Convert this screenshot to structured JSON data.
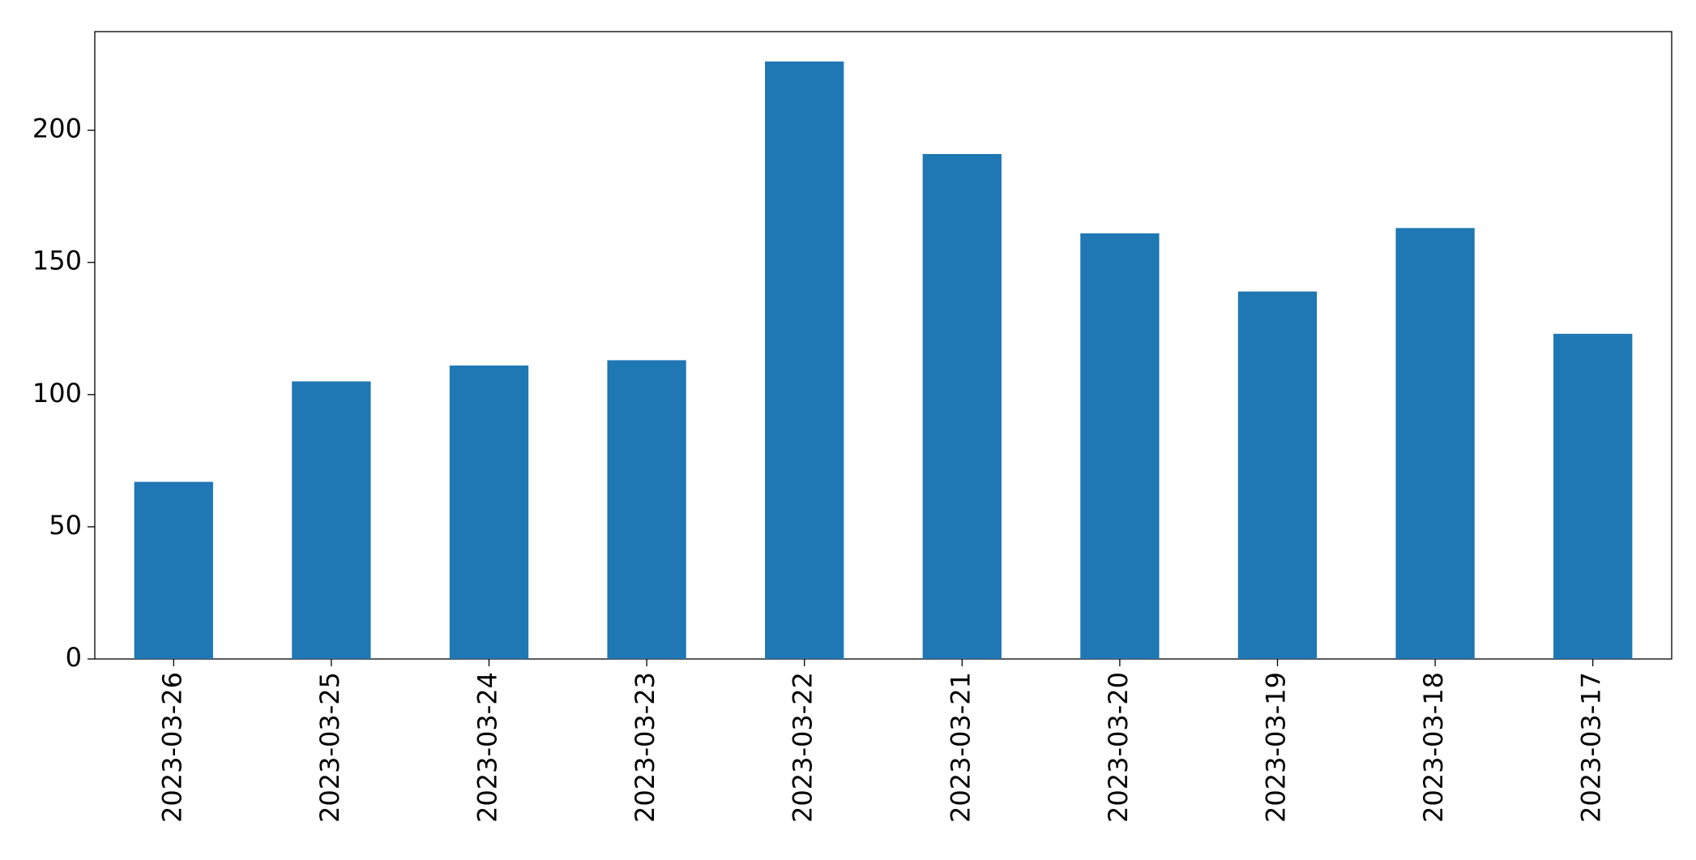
{
  "chart_data": {
    "type": "bar",
    "categories": [
      "2023-03-26",
      "2023-03-25",
      "2023-03-24",
      "2023-03-23",
      "2023-03-22",
      "2023-03-21",
      "2023-03-20",
      "2023-03-19",
      "2023-03-18",
      "2023-03-17"
    ],
    "values": [
      67,
      105,
      111,
      113,
      226,
      191,
      161,
      139,
      163,
      123
    ],
    "color": "#1f77b4",
    "ylim": [
      0,
      237.3
    ],
    "yticks": [
      0,
      50,
      100,
      150,
      200
    ],
    "grid": false
  }
}
